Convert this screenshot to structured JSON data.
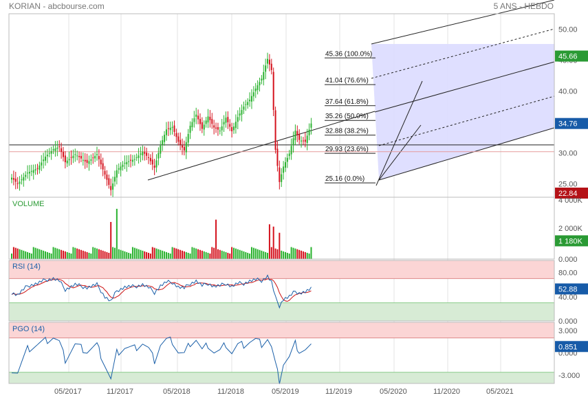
{
  "header": {
    "left": "KORIAN - abcbourse.com",
    "right": "5 ANS - HEBDO"
  },
  "colors": {
    "up": "#29b22e",
    "down": "#d4111c",
    "rsi": "#1a5fa8",
    "rsi_ma": "#cc1111",
    "pgo": "#1a5fa8",
    "zone_high": "#fbd5d5",
    "zone_low": "#d7ebd5",
    "channel_fill": "#dcdcff",
    "tag_blue": "#175ba8",
    "tag_green": "#2a9a34",
    "tag_red": "#b51217",
    "grid": "#e3e3e3"
  },
  "x_labels": [
    "05/2017",
    "11/2017",
    "05/2018",
    "11/2018",
    "05/2019",
    "11/2019",
    "05/2020",
    "11/2020",
    "05/2021"
  ],
  "chart_data": [
    {
      "type": "candlestick",
      "panel": "price",
      "title": "",
      "ylim": [
        22.84,
        52.5
      ],
      "y_ticks": [
        "25.00",
        "30.00",
        "35.00",
        "40.00",
        "45.00",
        "50.00"
      ],
      "last_price_tag": "34.76",
      "high_tag": "45.66",
      "low_tag": "22.84",
      "fibonacci": [
        {
          "label": "45.36  (100.0%)",
          "value": 45.36
        },
        {
          "label": "41.04  (76.6%)",
          "value": 41.04
        },
        {
          "label": "37.64  (61.8%)",
          "value": 37.64
        },
        {
          "label": "35.26  (50.0%)",
          "value": 35.26
        },
        {
          "label": "32.88  (38.2%)",
          "value": 32.88
        },
        {
          "label": "29.93  (23.6%)",
          "value": 29.93
        },
        {
          "label": "25.16  (0.0%)",
          "value": 25.16
        }
      ],
      "horizontal_lines": [
        31.3,
        30.2
      ],
      "week_count": 152,
      "close_anchors": [
        [
          0,
          26.0
        ],
        [
          3,
          25.0
        ],
        [
          8,
          26.8
        ],
        [
          13,
          27.5
        ],
        [
          17,
          29.4
        ],
        [
          21,
          30.6
        ],
        [
          24,
          31.0
        ],
        [
          27,
          28.5
        ],
        [
          32,
          29.8
        ],
        [
          38,
          28.4
        ],
        [
          43,
          29.8
        ],
        [
          47,
          26.5
        ],
        [
          50,
          24.0
        ],
        [
          53,
          27.2
        ],
        [
          57,
          28.4
        ],
        [
          62,
          29.0
        ],
        [
          66,
          30.2
        ],
        [
          69,
          29.2
        ],
        [
          72,
          27.6
        ],
        [
          75,
          31.2
        ],
        [
          78,
          33.8
        ],
        [
          81,
          34.2
        ],
        [
          84,
          31.8
        ],
        [
          87,
          30.4
        ],
        [
          90,
          34.4
        ],
        [
          93,
          36.2
        ],
        [
          96,
          33.9
        ],
        [
          99,
          35.9
        ],
        [
          102,
          34.1
        ],
        [
          105,
          33.6
        ],
        [
          108,
          35.7
        ],
        [
          111,
          33.5
        ],
        [
          114,
          35.8
        ],
        [
          117,
          37.5
        ],
        [
          120,
          38.6
        ],
        [
          123,
          40.4
        ],
        [
          126,
          42.0
        ],
        [
          129,
          45.2
        ],
        [
          131,
          43.4
        ],
        [
          133,
          30.5
        ],
        [
          135,
          25.3
        ],
        [
          137,
          27.8
        ],
        [
          140,
          29.9
        ],
        [
          143,
          33.6
        ],
        [
          145,
          32.1
        ],
        [
          148,
          31.8
        ],
        [
          151,
          34.76
        ]
      ]
    },
    {
      "type": "bar",
      "panel": "volume",
      "title": "VOLUME",
      "ylim": [
        0,
        4000
      ],
      "y_ticks": [
        "0.000",
        "2 000K",
        "4 000K"
      ],
      "last_value_tag": "1 180K",
      "spikes": [
        [
          50,
          2400
        ],
        [
          53,
          3250
        ],
        [
          103,
          2550
        ],
        [
          130,
          2250
        ],
        [
          132,
          2100
        ],
        [
          135,
          1700
        ]
      ],
      "base_level": 650
    },
    {
      "type": "line",
      "panel": "rsi",
      "title": "RSI (14)",
      "ylim": [
        0,
        100
      ],
      "y_ticks": [
        "0.000",
        "40.00",
        "80.00"
      ],
      "last_value_tag": "52.88",
      "overbought": 70,
      "oversold": 30,
      "anchors": [
        [
          0,
          47
        ],
        [
          3,
          43
        ],
        [
          8,
          58
        ],
        [
          13,
          62
        ],
        [
          17,
          68
        ],
        [
          21,
          70
        ],
        [
          24,
          66
        ],
        [
          27,
          52
        ],
        [
          32,
          60
        ],
        [
          38,
          55
        ],
        [
          43,
          60
        ],
        [
          47,
          40
        ],
        [
          50,
          32
        ],
        [
          53,
          50
        ],
        [
          57,
          56
        ],
        [
          62,
          57
        ],
        [
          66,
          60
        ],
        [
          69,
          55
        ],
        [
          72,
          47
        ],
        [
          75,
          58
        ],
        [
          78,
          64
        ],
        [
          81,
          64
        ],
        [
          84,
          56
        ],
        [
          87,
          54
        ],
        [
          90,
          62
        ],
        [
          93,
          66
        ],
        [
          96,
          58
        ],
        [
          99,
          62
        ],
        [
          102,
          57
        ],
        [
          105,
          58
        ],
        [
          108,
          62
        ],
        [
          111,
          57
        ],
        [
          114,
          62
        ],
        [
          117,
          62
        ],
        [
          120,
          66
        ],
        [
          123,
          68
        ],
        [
          126,
          67
        ],
        [
          129,
          74
        ],
        [
          131,
          64
        ],
        [
          133,
          38
        ],
        [
          135,
          25
        ],
        [
          137,
          36
        ],
        [
          140,
          40
        ],
        [
          143,
          49
        ],
        [
          145,
          46
        ],
        [
          148,
          48
        ],
        [
          151,
          52.88
        ]
      ]
    },
    {
      "type": "line",
      "panel": "pgo",
      "title": "PGO (14)",
      "ylim": [
        -4.1,
        4.1
      ],
      "y_ticks": [
        "-3.000",
        "0.000",
        "3.000"
      ],
      "last_value_tag": "0.851",
      "upper_band": 2.0,
      "lower_band": -2.6,
      "anchors": [
        [
          0,
          -2.2
        ],
        [
          3,
          -2.6
        ],
        [
          8,
          0.5
        ],
        [
          13,
          1.1
        ],
        [
          17,
          1.6
        ],
        [
          21,
          2.1
        ],
        [
          24,
          1.4
        ],
        [
          27,
          -0.9
        ],
        [
          32,
          1.1
        ],
        [
          38,
          0.2
        ],
        [
          43,
          1.0
        ],
        [
          47,
          -1.6
        ],
        [
          50,
          -3.6
        ],
        [
          53,
          0.0
        ],
        [
          57,
          0.7
        ],
        [
          62,
          0.6
        ],
        [
          66,
          1.3
        ],
        [
          69,
          0.5
        ],
        [
          72,
          -1.0
        ],
        [
          75,
          1.1
        ],
        [
          78,
          1.7
        ],
        [
          81,
          1.6
        ],
        [
          84,
          0.1
        ],
        [
          87,
          -0.2
        ],
        [
          90,
          1.3
        ],
        [
          93,
          1.8
        ],
        [
          96,
          0.3
        ],
        [
          99,
          1.1
        ],
        [
          102,
          0.1
        ],
        [
          105,
          0.2
        ],
        [
          108,
          1.2
        ],
        [
          111,
          0.0
        ],
        [
          114,
          1.0
        ],
        [
          117,
          1.1
        ],
        [
          120,
          1.5
        ],
        [
          123,
          1.7
        ],
        [
          126,
          1.2
        ],
        [
          129,
          1.9
        ],
        [
          131,
          0.7
        ],
        [
          133,
          -1.6
        ],
        [
          135,
          -3.7
        ],
        [
          137,
          -1.4
        ],
        [
          140,
          -0.6
        ],
        [
          143,
          1.2
        ],
        [
          145,
          0.3
        ],
        [
          148,
          0.4
        ],
        [
          151,
          0.851
        ]
      ]
    }
  ]
}
